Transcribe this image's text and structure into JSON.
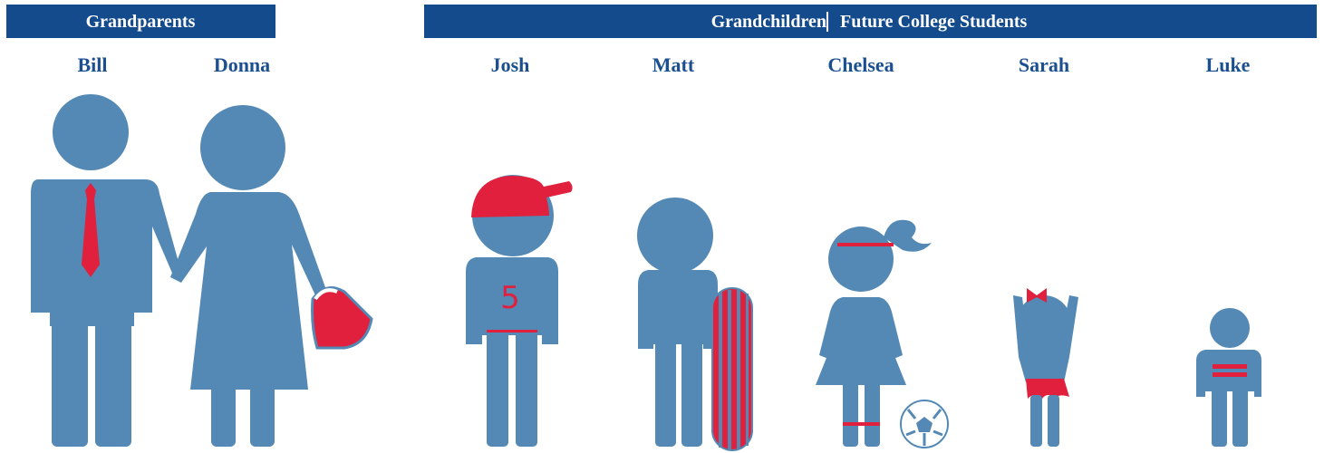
{
  "header": {
    "left_title": "Grandparents",
    "right_title": "Grandchildren",
    "right_subtitle": "Future College Students"
  },
  "people": [
    {
      "name": "Bill"
    },
    {
      "name": "Donna"
    },
    {
      "name": "Josh",
      "jersey": "5"
    },
    {
      "name": "Matt"
    },
    {
      "name": "Chelsea"
    },
    {
      "name": "Sarah"
    },
    {
      "name": "Luke"
    }
  ]
}
